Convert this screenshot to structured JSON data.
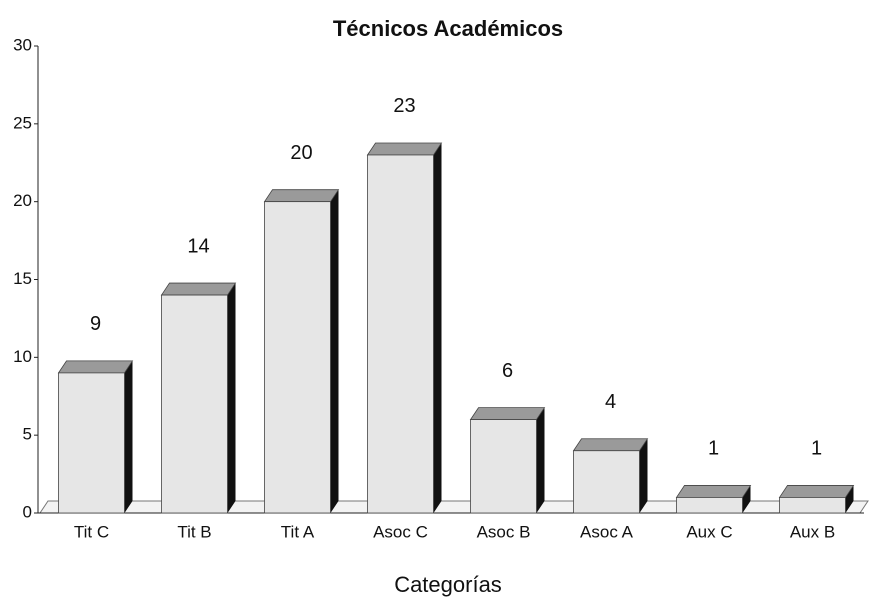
{
  "chart_data": {
    "type": "bar3d",
    "title": "Técnicos Académicos",
    "x_label": "Categorías",
    "categories": [
      "Tit C",
      "Tit B",
      "Tit A",
      "Asoc C",
      "Asoc B",
      "Asoc A",
      "Aux C",
      "Aux B"
    ],
    "values": [
      9,
      14,
      20,
      23,
      6,
      4,
      1,
      1
    ],
    "color": "#e6e6e6",
    "ylim": [
      0,
      30
    ],
    "yticks": [
      0,
      5,
      10,
      15,
      20,
      25,
      30
    ]
  }
}
